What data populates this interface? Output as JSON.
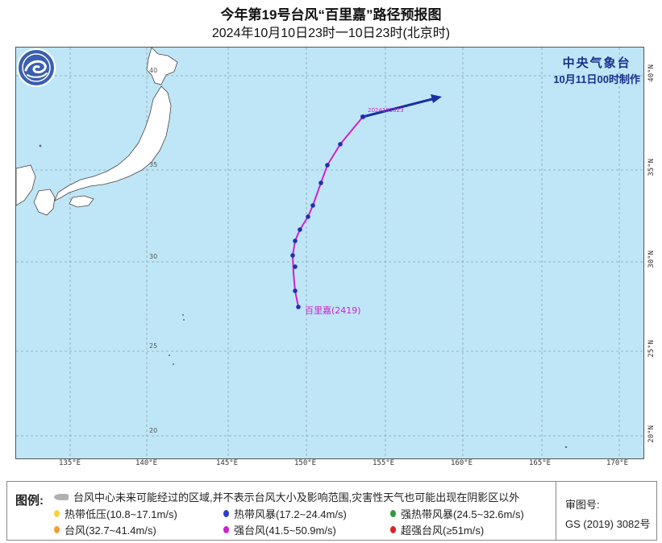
{
  "header": {
    "title": "今年第19号台风“百里嘉”路径预报图",
    "subtitle": "2024年10月10日23时一10日23时(北京时)"
  },
  "agency": {
    "name": "中央气象台",
    "issued": "10月11日00时制作"
  },
  "axes": {
    "lon_labels": [
      "135°E",
      "140°E",
      "145°E",
      "150°E",
      "155°E",
      "160°E",
      "165°E",
      "170°E"
    ],
    "lat_labels_right": [
      "40°N",
      "35°N",
      "30°N",
      "25°N",
      "20°N"
    ],
    "lat_labels_inside": [
      "40",
      "35",
      "30",
      "25",
      "20"
    ]
  },
  "typhoon": {
    "label": "百里嘉(2419)",
    "track_label": "2024101023",
    "colors": {
      "track": "#d020d0",
      "forecast_arrow": "#1a2fa0",
      "points": "#2030b0"
    }
  },
  "legend": {
    "title": "图例:",
    "cone_text": "台风中心未来可能经过的区域,并不表示台风大小及影响范围,灾害性天气也可能出现在阴影区以外",
    "items": [
      {
        "label": "热带低压(10.8~17.1m/s)",
        "color": "#f5d33a"
      },
      {
        "label": "热带风暴(17.2~24.4m/s)",
        "color": "#2b3fcf"
      },
      {
        "label": "强热带风暴(24.5~32.6m/s)",
        "color": "#2f9a3a"
      },
      {
        "label": "台风(32.7~41.4m/s)",
        "color": "#f0a030"
      },
      {
        "label": "强台风(41.5~50.9m/s)",
        "color": "#d020d0"
      },
      {
        "label": "超强台风(≥51m/s)",
        "color": "#e02020"
      }
    ],
    "approval_label": "审图号:",
    "approval_number": "GS (2019) 3082号"
  },
  "map_colors": {
    "ocean": "#bfe6f7",
    "land": "#ffffff",
    "grid": "#8aa0b0"
  }
}
